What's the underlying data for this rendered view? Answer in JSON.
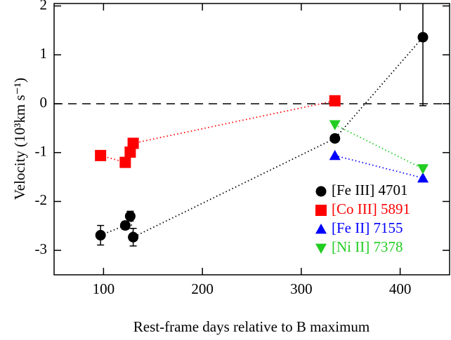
{
  "chart_data": {
    "type": "scatter",
    "xlabel": "Rest-frame days relative to B maximum",
    "ylabel": "Velocity (10³km s⁻¹)",
    "xlim": [
      50,
      450
    ],
    "ylim": [
      -3.5,
      2.05
    ],
    "xticks": [
      100,
      200,
      300,
      400
    ],
    "yticks": [
      -3,
      -2,
      -1,
      0,
      1,
      2
    ],
    "reference_line": 0,
    "legend": "lower right",
    "series": [
      {
        "name": "[Fe III] 4701",
        "color": "#000000",
        "marker": "circle",
        "line": "dotted",
        "x": [
          97,
          122,
          127,
          130,
          334,
          423
        ],
        "values": [
          -2.69,
          -2.49,
          -2.3,
          -2.73,
          -0.71,
          1.36
        ],
        "errors": [
          0.2,
          0.08,
          0.1,
          0.18,
          null,
          1.4
        ]
      },
      {
        "name": "[Co III] 5891",
        "color": "#ff0000",
        "marker": "square",
        "line": "dotted",
        "x": [
          97,
          122,
          127,
          130,
          334
        ],
        "values": [
          -1.06,
          -1.2,
          -0.99,
          -0.81,
          0.06
        ]
      },
      {
        "name": "[Fe II] 7155",
        "color": "#0000ff",
        "marker": "triangle-up",
        "line": "dotted",
        "x": [
          334,
          423
        ],
        "values": [
          -1.06,
          -1.52
        ]
      },
      {
        "name": "[Ni II] 7378",
        "color": "#22cc22",
        "marker": "triangle-down",
        "line": "dotted",
        "x": [
          334,
          423
        ],
        "values": [
          -0.43,
          -1.33
        ]
      }
    ]
  }
}
